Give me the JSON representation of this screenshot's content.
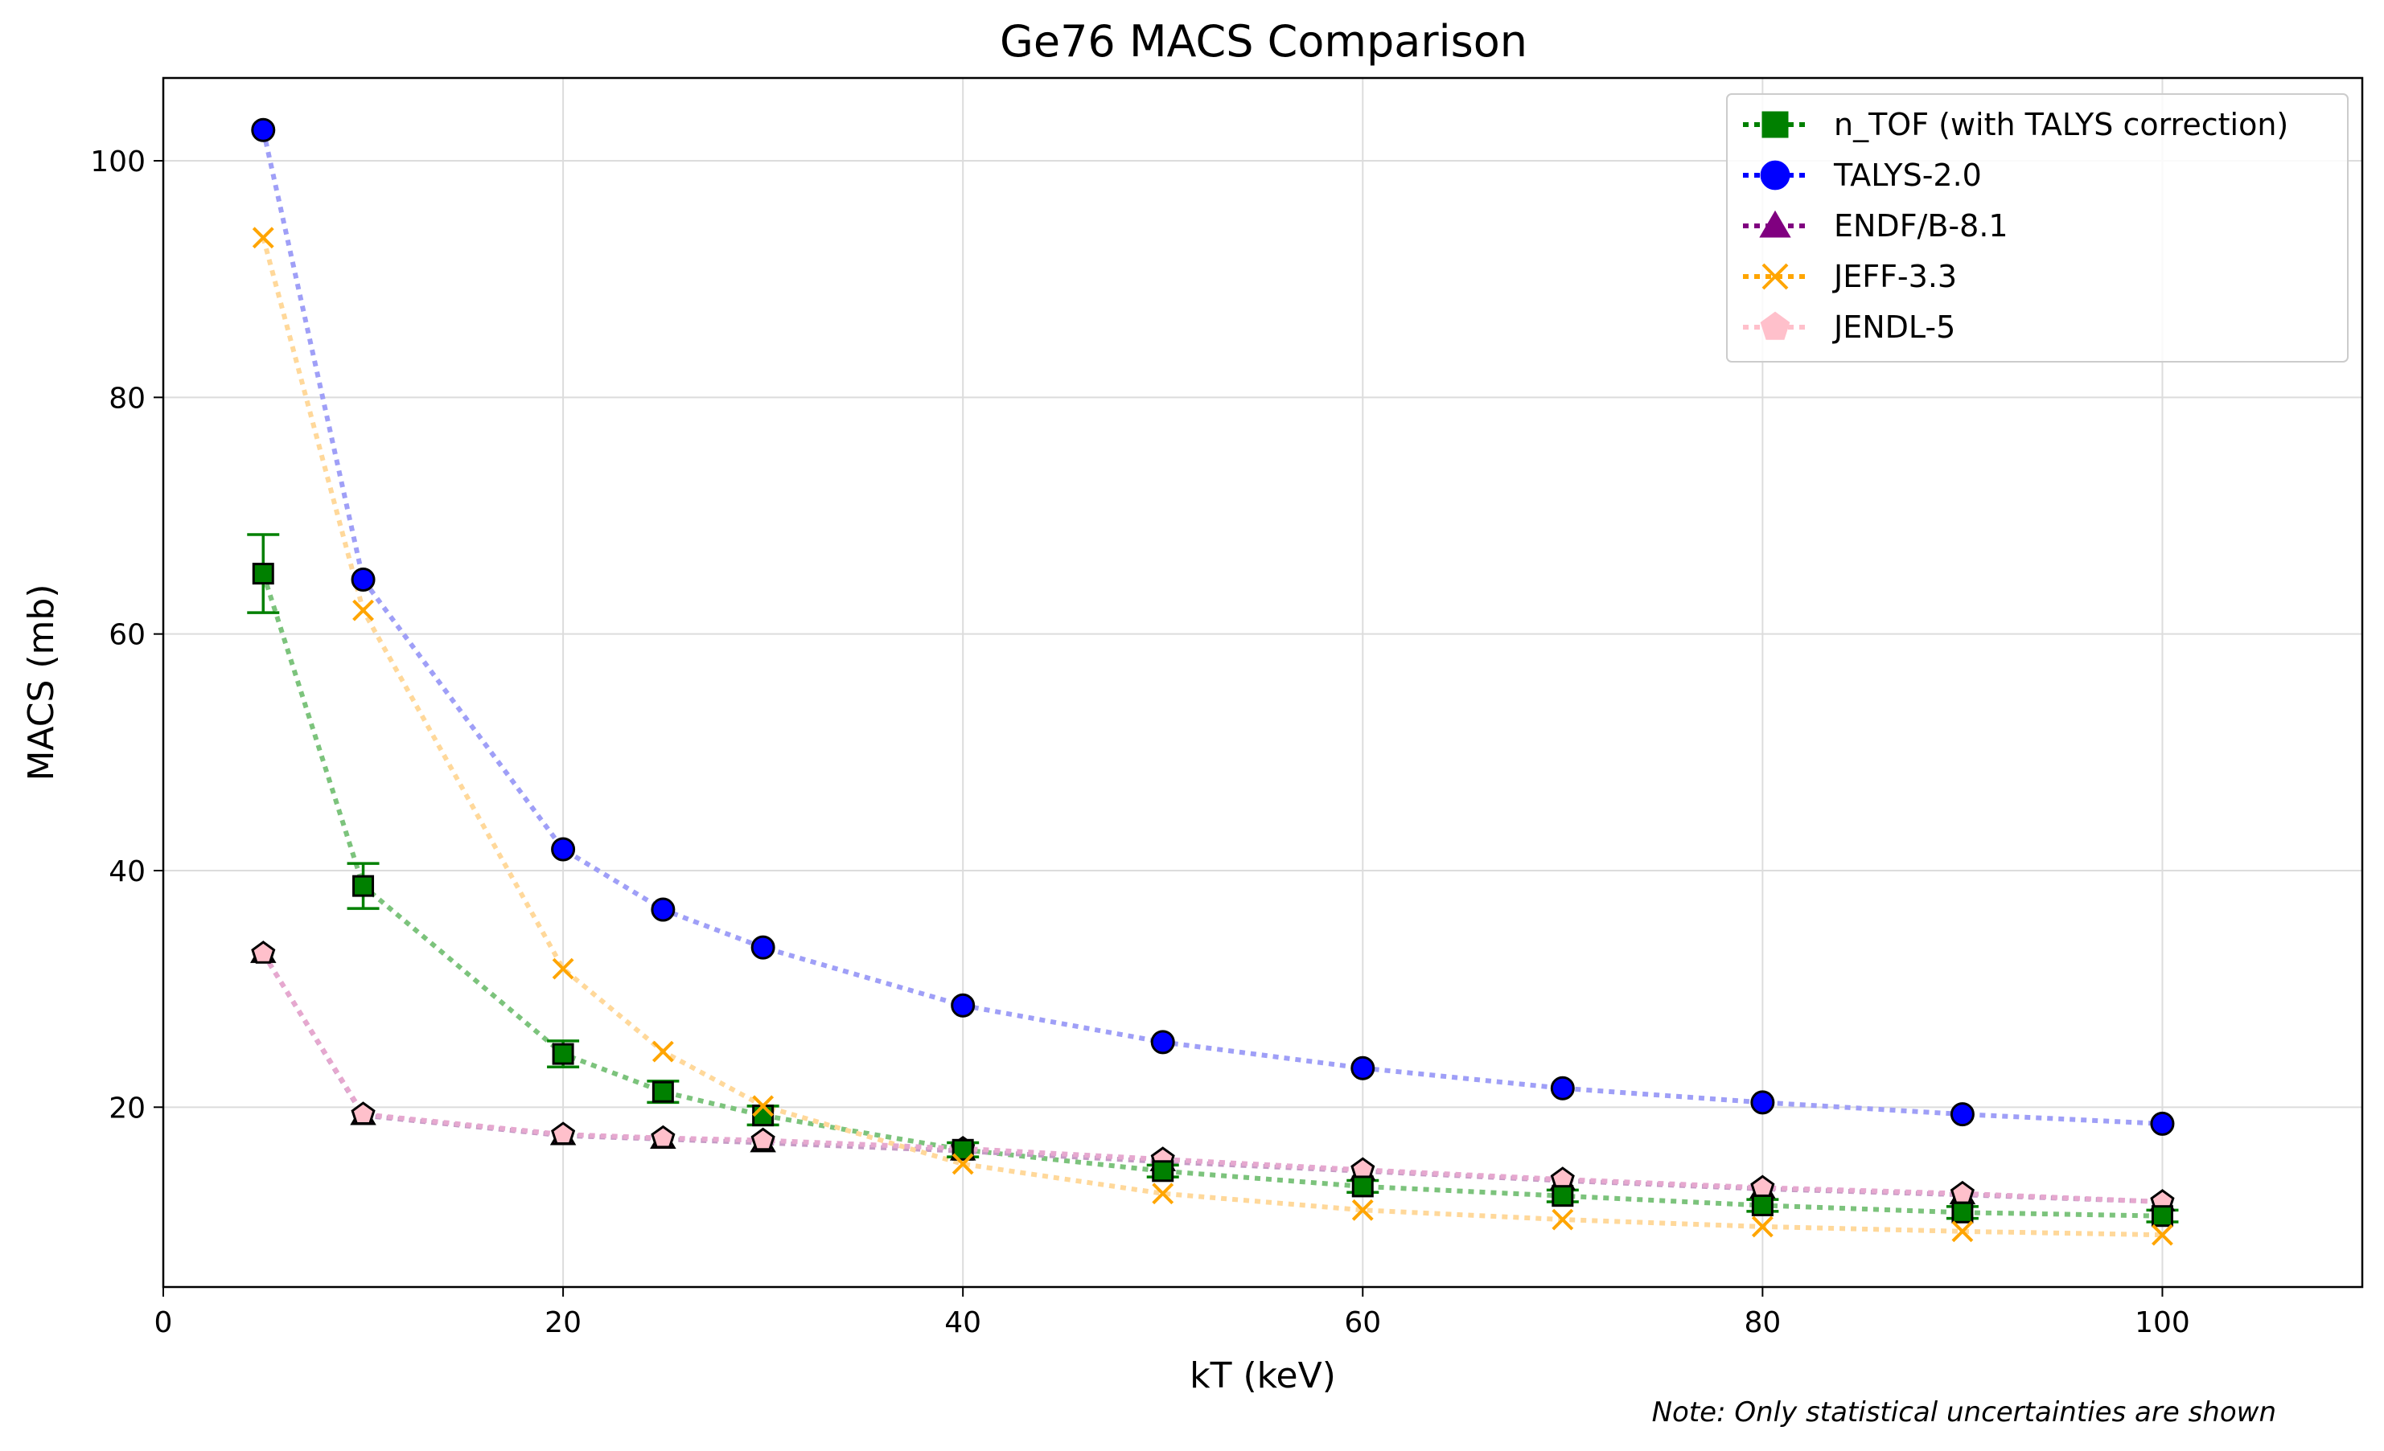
{
  "chart_data": {
    "type": "scatter",
    "title": "Ge76 MACS Comparison",
    "xlabel": "kT (keV)",
    "ylabel": "MACS (mb)",
    "xlim": [
      0,
      110
    ],
    "ylim": [
      4.8,
      107
    ],
    "xticks": [
      0,
      20,
      40,
      60,
      80,
      100
    ],
    "yticks": [
      20,
      40,
      60,
      80,
      100
    ],
    "grid": true,
    "legend_position": "top-right",
    "note": "Note: Only statistical uncertainties are shown",
    "series": [
      {
        "name": "n_TOF (with TALYS correction)",
        "marker": "square",
        "color": "#008000",
        "line_color": "#7cc37c",
        "x": [
          5,
          10,
          20,
          25,
          30,
          40,
          50,
          60,
          70,
          80,
          90,
          100
        ],
        "y": [
          65.1,
          38.7,
          24.5,
          21.3,
          19.3,
          16.4,
          14.6,
          13.3,
          12.5,
          11.7,
          11.1,
          10.8
        ],
        "yerr": [
          3.3,
          1.9,
          1.1,
          0.9,
          0.8,
          0.6,
          0.5,
          0.5,
          0.5,
          0.5,
          0.5,
          0.5
        ]
      },
      {
        "name": "TALYS-2.0",
        "marker": "circle",
        "color": "#0000ff",
        "line_color": "#9f9ff7",
        "x": [
          5,
          10,
          20,
          25,
          30,
          40,
          50,
          60,
          70,
          80,
          90,
          100
        ],
        "y": [
          102.6,
          64.6,
          41.8,
          36.7,
          33.5,
          28.6,
          25.5,
          23.3,
          21.6,
          20.4,
          19.4,
          18.6
        ]
      },
      {
        "name": "ENDF/B-8.1",
        "marker": "triangle",
        "color": "#800080",
        "line_color": "#c59ac5",
        "x": [
          5,
          10,
          20,
          25,
          30,
          40,
          50,
          60,
          70,
          80,
          90,
          100
        ],
        "y": [
          33.0,
          19.3,
          17.6,
          17.3,
          17.0,
          16.3,
          15.4,
          14.6,
          13.8,
          13.1,
          12.6,
          12.0
        ]
      },
      {
        "name": "JEFF-3.3",
        "marker": "x",
        "color": "#ffa500",
        "line_color": "#ffd89a",
        "x": [
          5,
          10,
          20,
          25,
          30,
          40,
          50,
          60,
          70,
          80,
          90,
          100
        ],
        "y": [
          93.5,
          62.0,
          31.7,
          24.7,
          20.1,
          15.2,
          12.7,
          11.3,
          10.5,
          9.9,
          9.5,
          9.2
        ]
      },
      {
        "name": "JENDL-5",
        "marker": "pentagon",
        "color": "#ffc0cb",
        "line_color": "#e6a8cf",
        "x": [
          5,
          10,
          20,
          25,
          30,
          40,
          50,
          60,
          70,
          80,
          90,
          100
        ],
        "y": [
          33.0,
          19.4,
          17.7,
          17.4,
          17.2,
          16.5,
          15.6,
          14.7,
          13.9,
          13.2,
          12.7,
          12.0
        ]
      }
    ]
  }
}
